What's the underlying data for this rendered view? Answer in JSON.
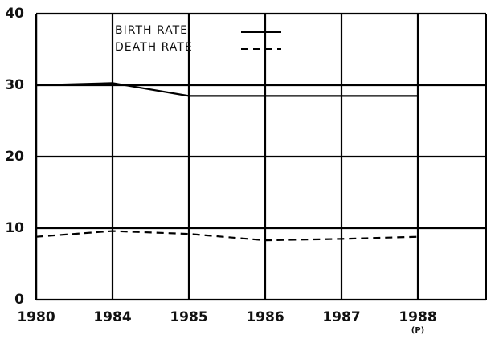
{
  "chart_data": {
    "type": "line",
    "categories": [
      "1980",
      "1984",
      "1985",
      "1986",
      "1987",
      "1988"
    ],
    "annotation": "(P)",
    "series": [
      {
        "name": "BIRTH RATE",
        "color": "#000000",
        "dash": "solid",
        "values": [
          30.0,
          30.3,
          28.5,
          28.5,
          28.5,
          28.5
        ]
      },
      {
        "name": "DEATH RATE",
        "color": "#000000",
        "dash": "dashed",
        "values": [
          8.8,
          9.6,
          9.2,
          8.3,
          8.5,
          8.8
        ]
      }
    ],
    "ylim": [
      0,
      40
    ],
    "yticks": [
      0,
      10,
      20,
      30,
      40
    ],
    "grid": true
  }
}
